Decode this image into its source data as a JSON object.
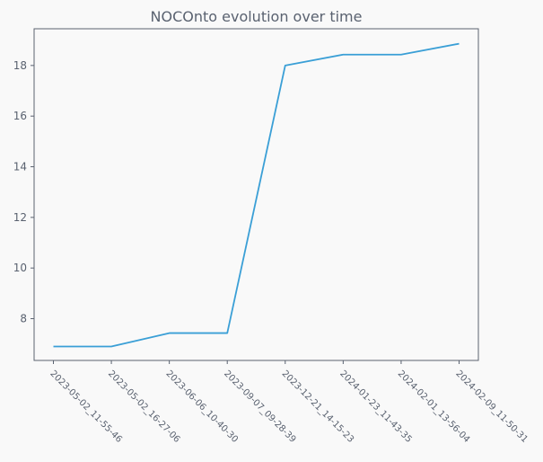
{
  "chart_data": {
    "type": "line",
    "title": "NOCOnto evolution over time",
    "xlabel": "",
    "ylabel": "",
    "categories": [
      "2023-05-02_11-55-46",
      "2023-05-02_16-27-06",
      "2023-06-06_10-40-30",
      "2023-09-07_09-28-39",
      "2023-12-21_14-15-23",
      "2024-01-23_11-43-35",
      "2024-02-01_13-56-04",
      "2024-02-09_11-50-31"
    ],
    "series": [
      {
        "values": [
          6.9,
          6.9,
          7.43,
          7.43,
          18.0,
          18.43,
          18.43,
          18.86
        ],
        "color": "#3a9fd6"
      }
    ],
    "yticks": [
      8,
      10,
      12,
      14,
      16,
      18
    ],
    "ylim": [
      6.35,
      19.45
    ],
    "grid": false,
    "legend": "none"
  }
}
